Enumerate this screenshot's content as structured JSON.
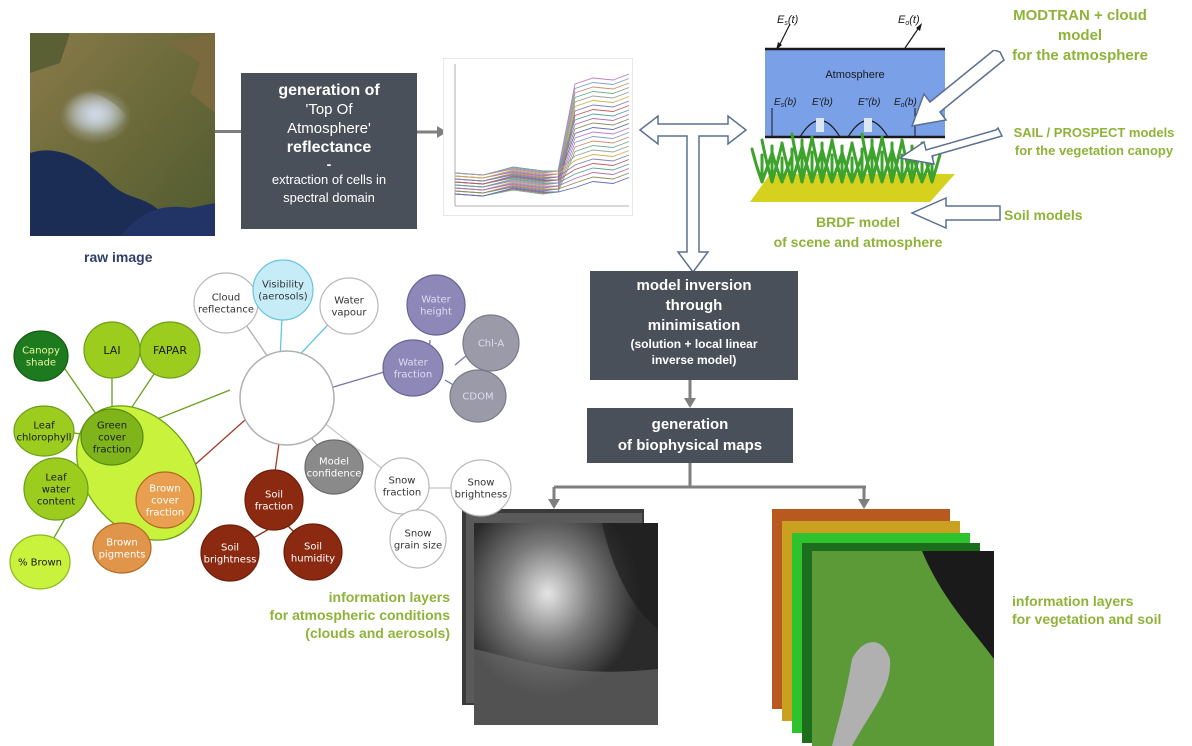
{
  "boxes": {
    "toa": {
      "line1": "generation of",
      "line2": "'Top Of",
      "line3": "Atmosphere'",
      "line4": "reflectance",
      "line5": "-",
      "line6": "extraction of cells in",
      "line7": "spectral domain"
    },
    "inversion": {
      "line1": "model inversion",
      "line2": "through",
      "line3": "minimisation",
      "line4": "(solution + local linear",
      "line5": "inverse model)"
    },
    "maps": {
      "line1": "generation",
      "line2": "of biophysical maps"
    }
  },
  "labels": {
    "raw_image": "raw image",
    "modtran": [
      "MODTRAN  + cloud",
      "model",
      "for the atmosphere"
    ],
    "sail": [
      "SAIL / PROSPECT models",
      "for the vegetation canopy"
    ],
    "soil_models": "Soil models",
    "brdf": [
      "BRDF  model",
      "of scene and atmosphere"
    ],
    "info_atmo": [
      "information layers",
      "for atmospheric conditions",
      "(clouds and aerosols)"
    ],
    "info_veg": [
      "information layers",
      "for vegetation and soil"
    ]
  },
  "atmosphere_diagram": {
    "title": "Atmosphere",
    "top_left": "E",
    "top_left_sub": "s",
    "top_left_suffix": "(t)",
    "top_right": "E",
    "top_right_sub": "o",
    "top_right_suffix": "(t)",
    "b1": "E",
    "b1_sub": "s",
    "b1_suffix": "(b)",
    "b2": "E'(b)",
    "b3": "E\"(b)",
    "b4": "E",
    "b4_sub": "o",
    "b4_suffix": "(b)"
  },
  "bubbles": [
    {
      "id": "canopy-shade",
      "lines": [
        "Canopy",
        "shade"
      ],
      "fill": "#1e7a1e",
      "text": "#e8f7a0"
    },
    {
      "id": "lai",
      "lines": [
        "LAI"
      ],
      "fill": "#9ccc1e",
      "text": "#1a1a1a"
    },
    {
      "id": "fapar",
      "lines": [
        "FAPAR"
      ],
      "fill": "#9ccc1e",
      "text": "#1a1a1a"
    },
    {
      "id": "leaf-chlorophyll",
      "lines": [
        "Leaf",
        "chlorophyll"
      ],
      "fill": "#9ccc1e",
      "text": "#1a1a1a"
    },
    {
      "id": "green-cover",
      "lines": [
        "Green",
        "cover",
        "fraction"
      ],
      "fill": "#7fb51a",
      "text": "#1a1a1a"
    },
    {
      "id": "leaf-water",
      "lines": [
        "Leaf",
        "water",
        "content"
      ],
      "fill": "#9ccc1e",
      "text": "#1a1a1a"
    },
    {
      "id": "brown-cover",
      "lines": [
        "Brown",
        "cover",
        "fraction"
      ],
      "fill": "#e8a050",
      "text": "#ffffff"
    },
    {
      "id": "brown-pigments",
      "lines": [
        "Brown",
        "pigments"
      ],
      "fill": "#e0954a",
      "text": "#ffffff"
    },
    {
      "id": "pct-brown",
      "lines": [
        "% Brown"
      ],
      "fill": "#c9f23c",
      "text": "#1a1a1a"
    },
    {
      "id": "cloud-reflectance",
      "lines": [
        "Cloud",
        "reflectance"
      ],
      "fill": "#ffffff",
      "text": "#333333"
    },
    {
      "id": "visibility",
      "lines": [
        "Visibility",
        "(aerosols)"
      ],
      "fill": "#c5ecf7",
      "text": "#333333"
    },
    {
      "id": "water-vapour",
      "lines": [
        "Water",
        "vapour"
      ],
      "fill": "#ffffff",
      "text": "#333333"
    },
    {
      "id": "water-height",
      "lines": [
        "Water",
        "height"
      ],
      "fill": "#8e88b8",
      "text": "#dcdcf2"
    },
    {
      "id": "chl-a",
      "lines": [
        "Chl-A"
      ],
      "fill": "#9a9aa8",
      "text": "#dcdcf2"
    },
    {
      "id": "water-fraction",
      "lines": [
        "Water",
        "fraction"
      ],
      "fill": "#8e88b8",
      "text": "#dcdcf2"
    },
    {
      "id": "cdom",
      "lines": [
        "CDOM"
      ],
      "fill": "#9a9aa8",
      "text": "#dcdcf2"
    },
    {
      "id": "model-confidence",
      "lines": [
        "Model",
        "confidence"
      ],
      "fill": "#8a8a8a",
      "text": "#ffffff"
    },
    {
      "id": "snow-fraction",
      "lines": [
        "Snow",
        "fraction"
      ],
      "fill": "#ffffff",
      "text": "#333333"
    },
    {
      "id": "snow-brightness",
      "lines": [
        "Snow",
        "brightness"
      ],
      "fill": "#ffffff",
      "text": "#333333"
    },
    {
      "id": "snow-grain",
      "lines": [
        "Snow",
        "grain size"
      ],
      "fill": "#ffffff",
      "text": "#333333"
    },
    {
      "id": "soil-fraction",
      "lines": [
        "Soil",
        "fraction"
      ],
      "fill": "#8b2a10",
      "text": "#ffffff"
    },
    {
      "id": "soil-brightness",
      "lines": [
        "Soil",
        "brightness"
      ],
      "fill": "#8b2a10",
      "text": "#ffffff"
    },
    {
      "id": "soil-humidity",
      "lines": [
        "Soil",
        "humidity"
      ],
      "fill": "#8b2a10",
      "text": "#ffffff"
    }
  ],
  "colors": {
    "box_bg": "#4a5059",
    "label_green": "#8fb339",
    "raw_label": "#2f3f6a",
    "arrow_grey": "#7f7f7f"
  }
}
